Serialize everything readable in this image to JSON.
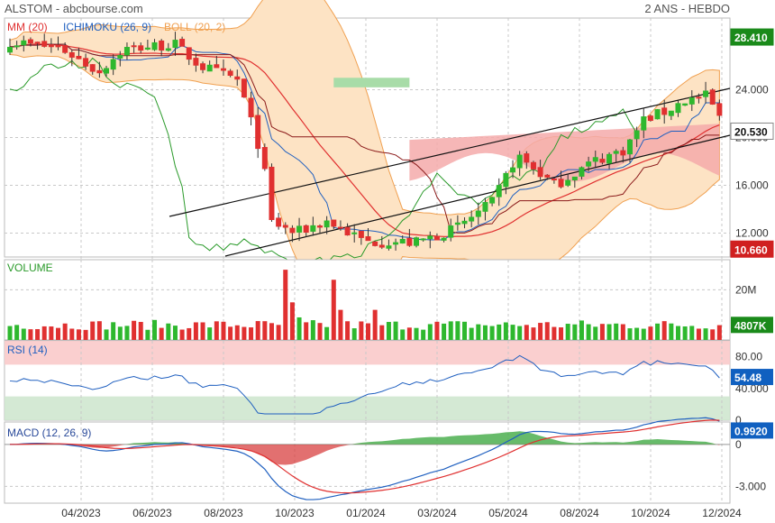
{
  "header": {
    "left": "ALSTOM - abcbourse.com",
    "right": "2 ANS - HEBDO"
  },
  "colors": {
    "up": "#2eb82e",
    "down": "#e03030",
    "mm": "#e03030",
    "ichimoku": "#2060c0",
    "boll": "#f0a050",
    "bollFill": "#fde3c4",
    "kumoBull": "#a8dca8",
    "kumoBear": "#f5aaaa",
    "volume": "#2eb82e",
    "rsi": "#2060c0",
    "macd": "#2060c0",
    "signal": "#e03030",
    "histPos": "#4caf50",
    "histNeg": "#d84040",
    "badgeGreen": "#1a8a1a",
    "badgeRed": "#d02020",
    "badgeBlue": "#1060c0",
    "grid": "#c8c8c8"
  },
  "chart_data": [
    {
      "id": "price",
      "type": "candlestick",
      "title": "",
      "legend": [
        {
          "label": "MM (20)",
          "color": "#e03030"
        },
        {
          "label": "ICHIMOKU (26, 9)",
          "color": "#2060c0"
        },
        {
          "label": "BOLL (20, 2)",
          "color": "#f0a050"
        }
      ],
      "ylim": [
        10.0,
        30.0
      ],
      "ticks": [
        "24.000",
        "20.000",
        "16.000",
        "12.000"
      ],
      "tickValues": [
        24,
        20,
        16,
        12
      ],
      "badges": [
        {
          "label": "28.410",
          "value": 28.41,
          "color": "#1a8a1a"
        },
        {
          "label": "20.530",
          "value": 20.53,
          "color": "#ffffff"
        },
        {
          "label": "10.660",
          "value": 10.66,
          "color": "#d02020"
        }
      ]
    },
    {
      "id": "volume",
      "type": "bar",
      "title": "VOLUME",
      "tick": "20M",
      "tickValue": 20,
      "badge": {
        "label": "4807K",
        "value": 4.807
      },
      "ylim": [
        0,
        32
      ]
    },
    {
      "id": "rsi",
      "type": "line",
      "title": "RSI (14)",
      "ticks": [
        "80.00",
        "40.000",
        "0"
      ],
      "tickValues": [
        80,
        40,
        0
      ],
      "badge": {
        "label": "54.48",
        "value": 54.48
      },
      "ylim": [
        0,
        100
      ]
    },
    {
      "id": "macd",
      "type": "line",
      "title": "MACD (12, 26, 9)",
      "ticks": [
        "0",
        "-3.000"
      ],
      "tickValues": [
        0,
        -3
      ],
      "badge": {
        "label": "0.9920",
        "value": 0.992
      },
      "ylim": [
        -4.2,
        1.6
      ]
    }
  ],
  "xaxis": {
    "labels": [
      "04/2023",
      "06/2023",
      "08/2023",
      "10/2023",
      "01/2024",
      "03/2024",
      "05/2024",
      "08/2024",
      "10/2024",
      "12/2024"
    ]
  }
}
